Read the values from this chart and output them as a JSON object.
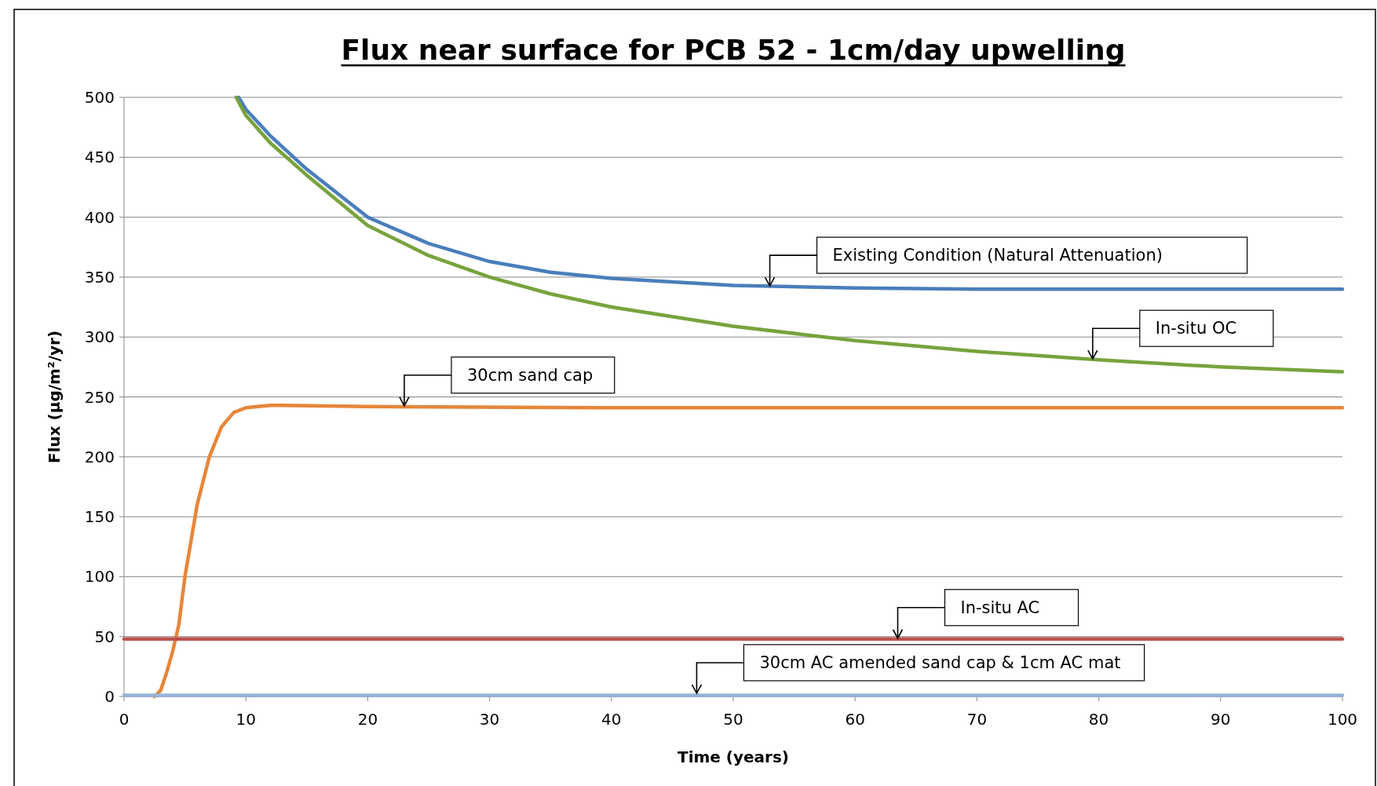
{
  "chart_data": {
    "type": "line",
    "title": "Flux near surface for PCB 52 - 1cm/day upwelling",
    "xlabel": "Time (years)",
    "ylabel": "Flux (µg/m²/yr)",
    "xlim": [
      0,
      100
    ],
    "xticks": [
      0,
      10,
      20,
      30,
      40,
      50,
      60,
      70,
      80,
      90,
      100
    ],
    "ylim": [
      0,
      500
    ],
    "yticks": [
      0,
      50,
      100,
      150,
      200,
      250,
      300,
      350,
      400,
      450,
      500
    ],
    "grid": "y",
    "marker": "none",
    "line_style": "solid",
    "series": [
      {
        "color": "#4a7ebb",
        "x": [
          9.4,
          10,
          12,
          15,
          20,
          25,
          30,
          35,
          40,
          50,
          60,
          70,
          80,
          90,
          100
        ],
        "values": [
          500,
          490,
          468,
          440,
          400,
          378,
          363,
          354,
          349,
          343,
          341,
          340,
          340,
          340,
          340
        ]
      },
      {
        "color": "#77a33c",
        "x": [
          9.2,
          10,
          12,
          15,
          20,
          25,
          30,
          35,
          40,
          50,
          60,
          70,
          80,
          90,
          100
        ],
        "values": [
          500,
          485,
          462,
          435,
          393,
          368,
          350,
          336,
          325,
          309,
          297,
          288,
          281,
          275,
          271
        ]
      },
      {
        "color": "#e6863a",
        "x": [
          2.5,
          3,
          3.5,
          4,
          4.5,
          5,
          6,
          7,
          8,
          9,
          10,
          12,
          13,
          20,
          40,
          100
        ],
        "values": [
          0,
          5,
          20,
          38,
          60,
          100,
          160,
          200,
          225,
          237,
          241,
          243,
          243,
          242,
          241,
          241
        ]
      },
      {
        "color": "#c0504d",
        "x": [
          0,
          100
        ],
        "values": [
          48,
          48
        ]
      },
      {
        "color": "#95b3d7",
        "x": [
          0,
          100
        ],
        "values": [
          1,
          1
        ]
      }
    ],
    "annotations": [
      {
        "text": "Existing Condition (Natural Attenuation)",
        "x": 53,
        "y": 342
      },
      {
        "text": "In-situ OC",
        "x": 79.5,
        "y": 281
      },
      {
        "text": "30cm sand cap",
        "x": 23,
        "y": 242
      },
      {
        "text": "In-situ AC",
        "x": 63.5,
        "y": 48
      },
      {
        "text": "30cm AC amended sand cap & 1cm AC mat",
        "x": 47,
        "y": 2
      }
    ]
  }
}
